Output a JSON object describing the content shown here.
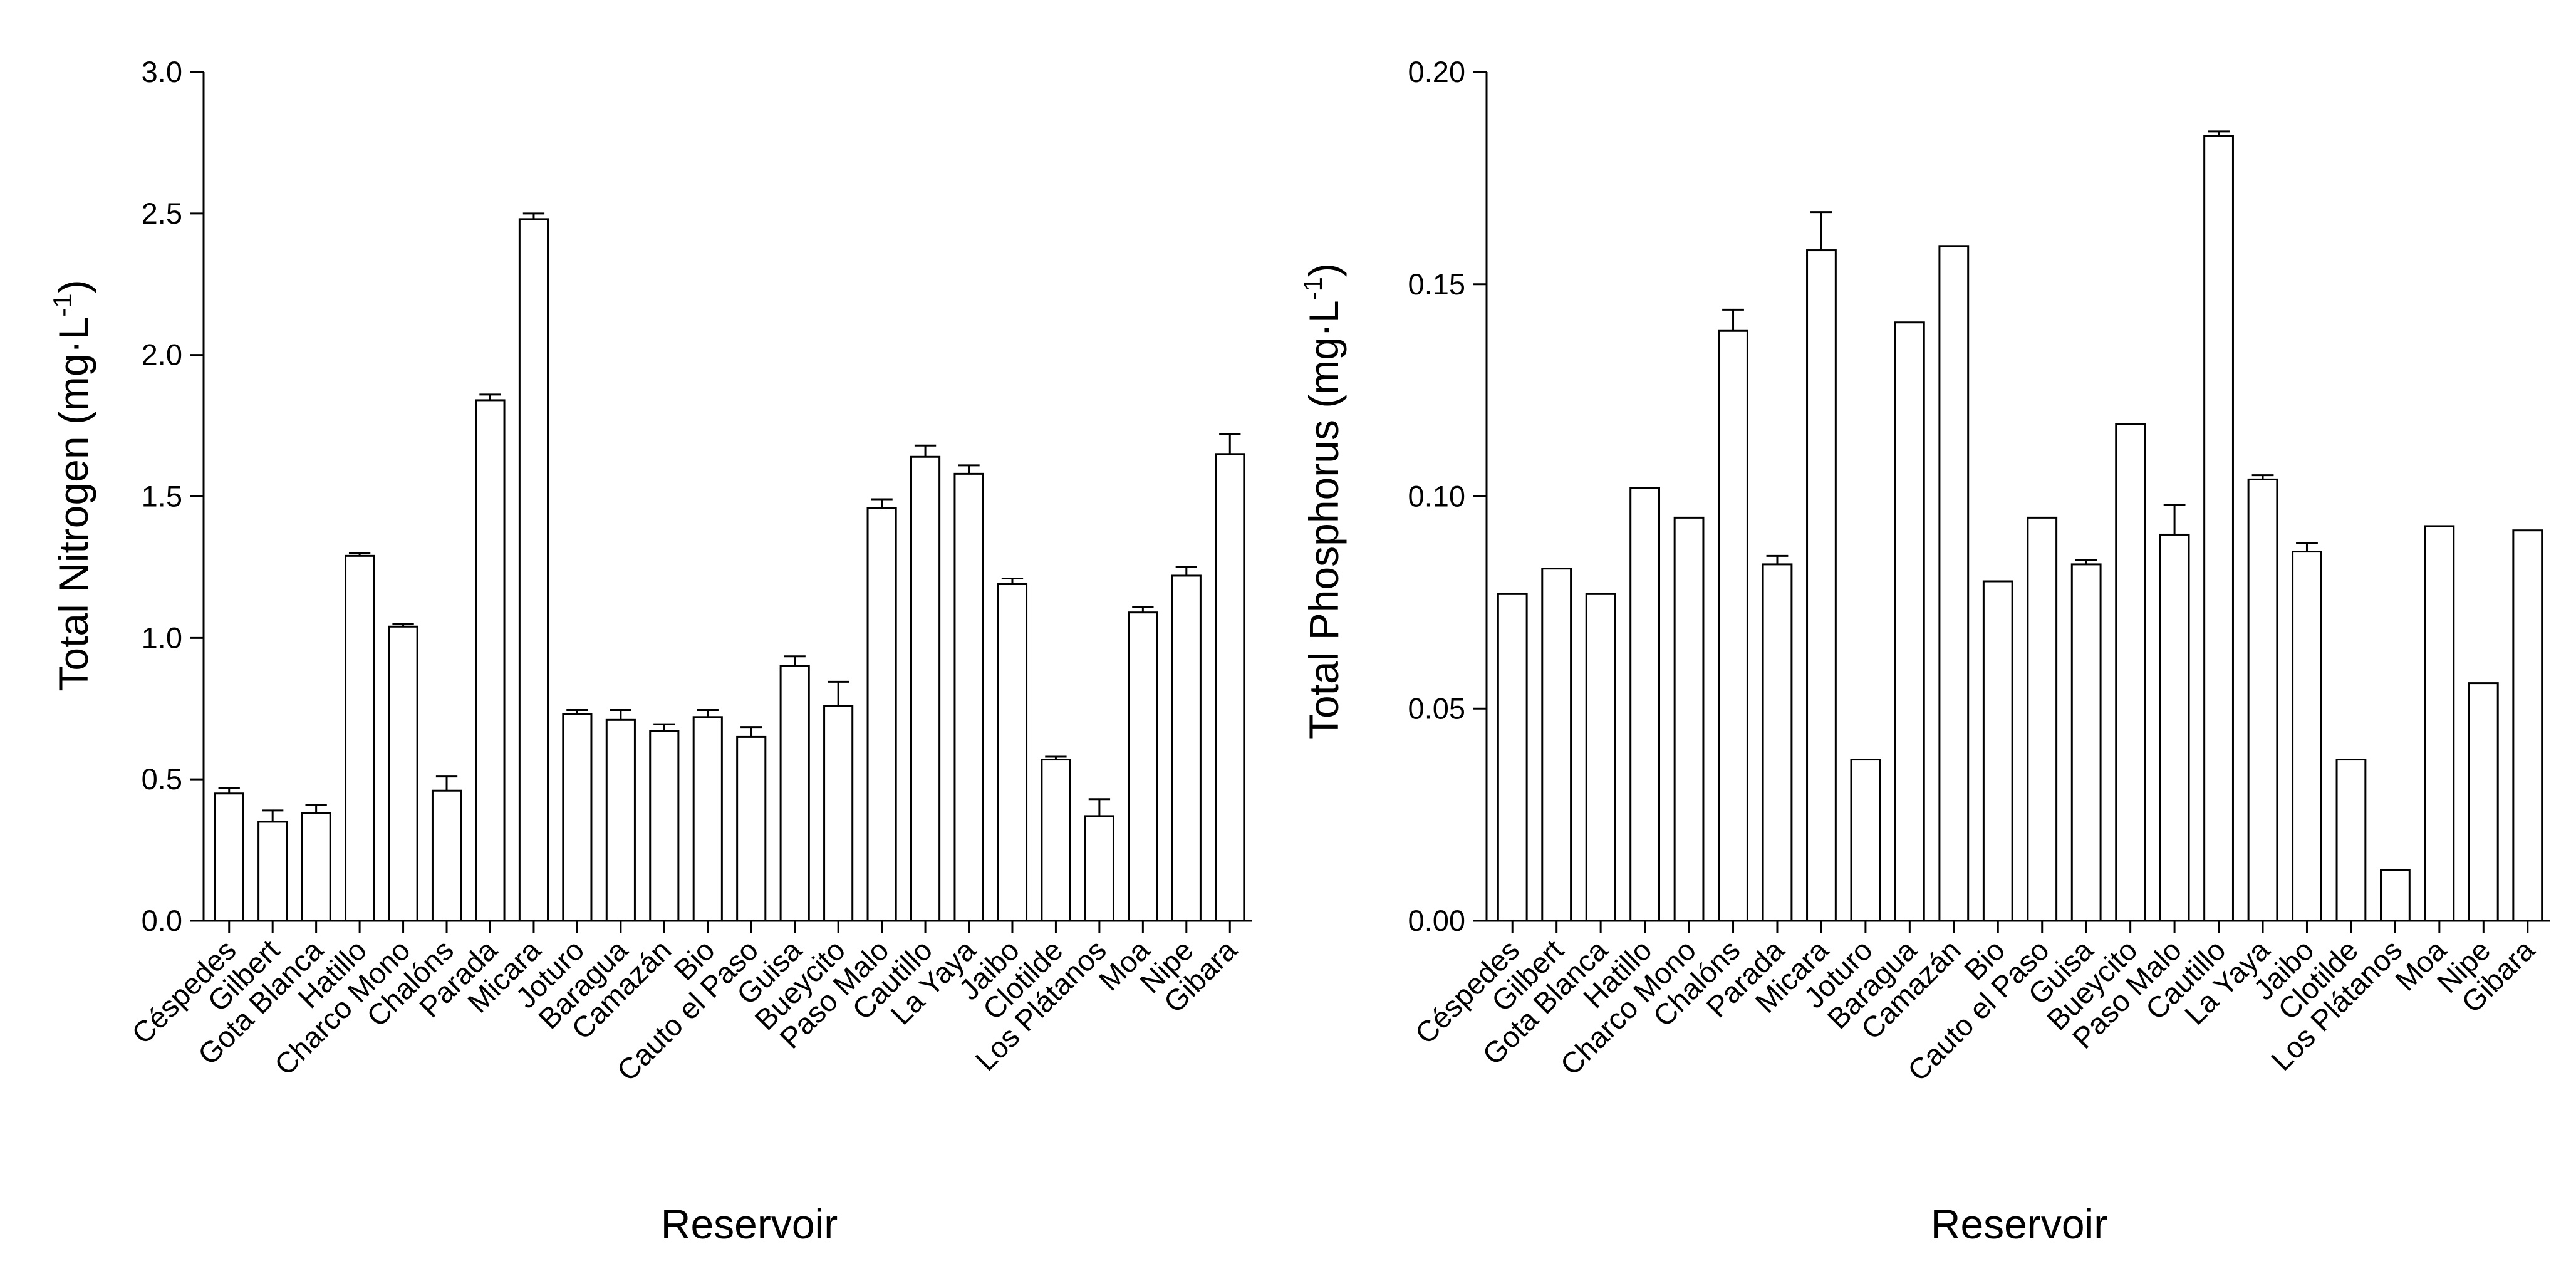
{
  "chart_data": [
    {
      "type": "bar",
      "categories": [
        "Céspedes",
        "Gilbert",
        "Gota Blanca",
        "Hatillo",
        "Charco Mono",
        "Chalóns",
        "Parada",
        "Micara",
        "Joturo",
        "Baragua",
        "Camazán",
        "Bio",
        "Cauto el Paso",
        "Guisa",
        "Bueycito",
        "Paso Malo",
        "Cautillo",
        "La Yaya",
        "Jaibo",
        "Clotilde",
        "Los Plátanos",
        "Moa",
        "Nipe",
        "Gibara"
      ],
      "values": [
        0.45,
        0.35,
        0.38,
        1.29,
        1.04,
        0.46,
        1.84,
        2.48,
        0.73,
        0.71,
        0.67,
        0.72,
        0.65,
        0.9,
        0.76,
        1.46,
        1.64,
        1.58,
        1.19,
        0.57,
        0.37,
        1.09,
        1.22,
        1.65
      ],
      "errors": [
        0.02,
        0.04,
        0.03,
        0.01,
        0.01,
        0.05,
        0.02,
        0.02,
        0.015,
        0.035,
        0.025,
        0.025,
        0.035,
        0.035,
        0.085,
        0.03,
        0.04,
        0.03,
        0.02,
        0.01,
        0.06,
        0.02,
        0.03,
        0.07
      ],
      "ylim": [
        0,
        3.0
      ],
      "yticks": [
        "0.0",
        "0.5",
        "1.0",
        "1.5",
        "2.0",
        "2.5",
        "3.0"
      ],
      "ylabel": "Total Nitrogen (mg·L",
      "ylabel_sup": "-1",
      "ylabel_close": ")",
      "xlabel": "Reservoir",
      "grid": false,
      "legend": "none"
    },
    {
      "type": "bar",
      "categories": [
        "Céspedes",
        "Gilbert",
        "Gota Blanca",
        "Hatillo",
        "Charco Mono",
        "Chalóns",
        "Parada",
        "Micara",
        "Joturo",
        "Baragua",
        "Camazán",
        "Bio",
        "Cauto el Paso",
        "Guisa",
        "Bueycito",
        "Paso Malo",
        "Cautillo",
        "La Yaya",
        "Jaibo",
        "Clotilde",
        "Los Plátanos",
        "Moa",
        "Nipe",
        "Gibara"
      ],
      "values": [
        0.077,
        0.083,
        0.077,
        0.102,
        0.095,
        0.139,
        0.084,
        0.158,
        0.038,
        0.141,
        0.159,
        0.08,
        0.095,
        0.084,
        0.117,
        0.091,
        0.185,
        0.104,
        0.087,
        0.038,
        0.012,
        0.093,
        0.056,
        0.092
      ],
      "errors": [
        0,
        0,
        0,
        0,
        0,
        0.005,
        0.002,
        0.009,
        0,
        0,
        0,
        0,
        0,
        0.001,
        0,
        0.007,
        0.001,
        0.001,
        0.002,
        0,
        0,
        0,
        0,
        0
      ],
      "ylim": [
        0,
        0.2
      ],
      "yticks": [
        "0.00",
        "0.05",
        "0.10",
        "0.15",
        "0.20"
      ],
      "ylabel": "Total Phosphorus (mg·L",
      "ylabel_sup": "-1",
      "ylabel_close": ")",
      "xlabel": "Reservoir",
      "grid": false,
      "legend": "none"
    }
  ]
}
